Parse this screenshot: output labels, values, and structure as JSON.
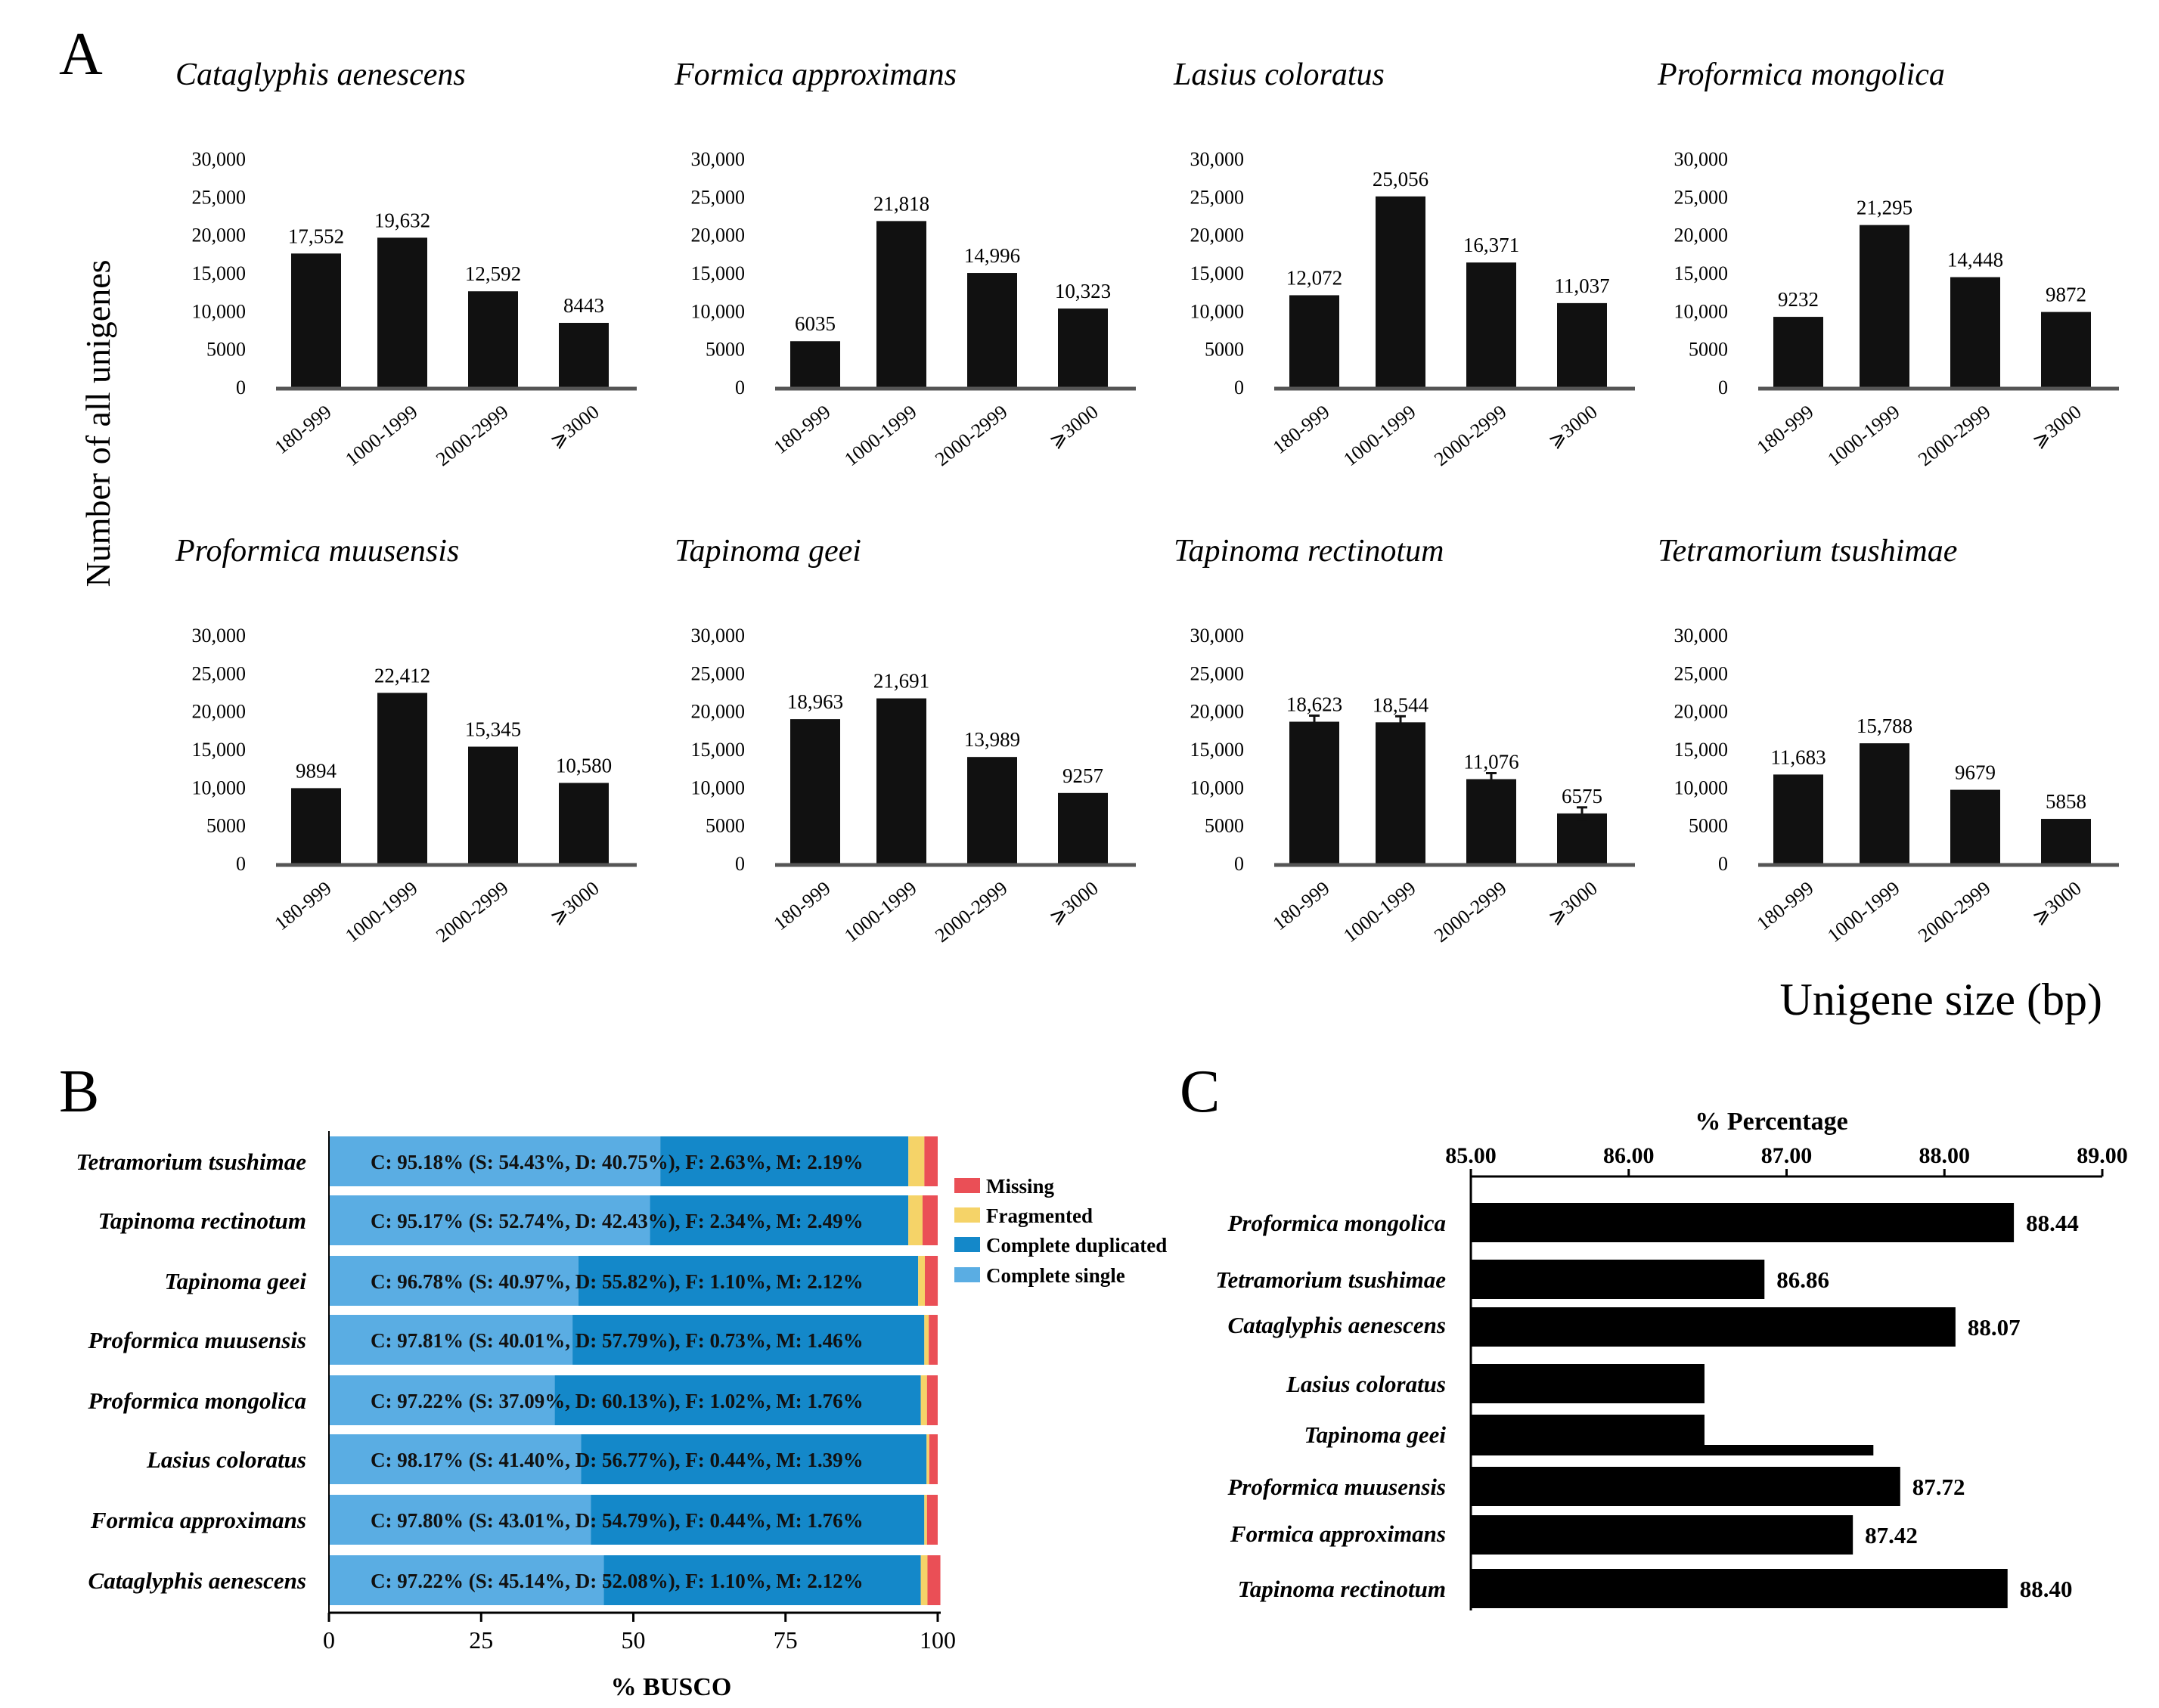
{
  "panel_labels": [
    "A",
    "B",
    "C"
  ],
  "panel_a": {
    "y_axis_label": "Number of all unigenes",
    "x_axis_label": "Unigene size (bp)",
    "y_ticks": [
      "30,000",
      "25,000",
      "20,000",
      "15,000",
      "10,000",
      "5000",
      "0"
    ]
  },
  "chart_data": [
    {
      "type": "bar",
      "panel": "A",
      "title": "Cataglyphis aenescens",
      "categories": [
        "180-999",
        "1000-1999",
        "2000-2999",
        "⩾3000"
      ],
      "values": [
        17552,
        19632,
        12592,
        8443
      ],
      "value_labels": [
        "17,552",
        "19,632",
        "12,592",
        "8443"
      ],
      "ylim": [
        0,
        30000
      ]
    },
    {
      "type": "bar",
      "panel": "A",
      "title": "Formica approximans",
      "categories": [
        "180-999",
        "1000-1999",
        "2000-2999",
        "⩾3000"
      ],
      "values": [
        6035,
        21818,
        14996,
        10323
      ],
      "value_labels": [
        "6035",
        "21,818",
        "14,996",
        "10,323"
      ],
      "ylim": [
        0,
        30000
      ]
    },
    {
      "type": "bar",
      "panel": "A",
      "title": "Lasius coloratus",
      "categories": [
        "180-999",
        "1000-1999",
        "2000-2999",
        "⩾3000"
      ],
      "values": [
        12072,
        25056,
        16371,
        11037
      ],
      "value_labels": [
        "12,072",
        "25,056",
        "16,371",
        "11,037"
      ],
      "ylim": [
        0,
        30000
      ]
    },
    {
      "type": "bar",
      "panel": "A",
      "title": "Proformica mongolica",
      "categories": [
        "180-999",
        "1000-1999",
        "2000-2999",
        "⩾3000"
      ],
      "values": [
        9232,
        21295,
        14448,
        9872
      ],
      "value_labels": [
        "9232",
        "21,295",
        "14,448",
        "9872"
      ],
      "ylim": [
        0,
        30000
      ]
    },
    {
      "type": "bar",
      "panel": "A",
      "title": "Proformica muusensis",
      "categories": [
        "180-999",
        "1000-1999",
        "2000-2999",
        "⩾3000"
      ],
      "values": [
        9894,
        22412,
        15345,
        10580
      ],
      "value_labels": [
        "9894",
        "22,412",
        "15,345",
        "10,580"
      ],
      "ylim": [
        0,
        30000
      ]
    },
    {
      "type": "bar",
      "panel": "A",
      "title": "Tapinoma geei",
      "categories": [
        "180-999",
        "1000-1999",
        "2000-2999",
        "⩾3000"
      ],
      "values": [
        18963,
        21691,
        13989,
        9257
      ],
      "value_labels": [
        "18,963",
        "21,691",
        "13,989",
        "9257"
      ],
      "ylim": [
        0,
        30000
      ]
    },
    {
      "type": "bar",
      "panel": "A",
      "title": "Tapinoma rectinotum",
      "categories": [
        "180-999",
        "1000-1999",
        "2000-2999",
        "⩾3000"
      ],
      "values": [
        18623,
        18544,
        11076,
        6575
      ],
      "value_labels": [
        "18,623",
        "18,544",
        "11,076",
        "6575"
      ],
      "ylim": [
        0,
        30000
      ]
    },
    {
      "type": "bar",
      "panel": "A",
      "title": "Tetramorium tsushimae",
      "categories": [
        "180-999",
        "1000-1999",
        "2000-2999",
        "⩾3000"
      ],
      "values": [
        11683,
        15788,
        9679,
        5858
      ],
      "value_labels": [
        "11,683",
        "15,788",
        "9679",
        "5858"
      ],
      "ylim": [
        0,
        30000
      ]
    },
    {
      "type": "stacked_bar_horizontal",
      "panel": "B",
      "xlabel": "% BUSCO",
      "x_ticks": [
        "0",
        "25",
        "50",
        "75",
        "100"
      ],
      "xlim": [
        0,
        100
      ],
      "legend": [
        "Missing",
        "Fragmented",
        "Complete duplicated",
        "Complete single"
      ],
      "colors": {
        "single": "#5aade3",
        "duplicated": "#1488c9",
        "fragmented": "#f5d368",
        "missing": "#ea4f56"
      },
      "categories": [
        "Tetramorium tsushimae",
        "Tapinoma rectinotum",
        "Tapinoma geei",
        "Proformica muusensis",
        "Proformica mongolica",
        "Lasius coloratus",
        "Formica approximans",
        "Cataglyphis aenescens"
      ],
      "series": [
        {
          "name": "Complete single",
          "values": [
            54.43,
            52.74,
            40.97,
            40.01,
            37.09,
            41.4,
            43.01,
            45.14
          ]
        },
        {
          "name": "Complete duplicated",
          "values": [
            40.75,
            42.43,
            55.82,
            57.79,
            60.13,
            56.77,
            54.79,
            52.08
          ]
        },
        {
          "name": "Fragmented",
          "values": [
            2.63,
            2.34,
            1.1,
            0.73,
            1.02,
            0.44,
            0.44,
            1.1
          ]
        },
        {
          "name": "Missing",
          "values": [
            2.19,
            2.49,
            2.12,
            1.46,
            1.76,
            1.39,
            1.76,
            2.12
          ]
        }
      ],
      "bar_labels": [
        "C: 95.18% (S: 54.43%, D: 40.75%), F: 2.63%, M: 2.19%",
        "C: 95.17% (S: 52.74%, D: 42.43%), F: 2.34%, M: 2.49%",
        "C: 96.78% (S: 40.97%, D: 55.82%), F: 1.10%, M: 2.12%",
        "C: 97.81% (S: 40.01%, D: 57.79%), F: 0.73%, M: 1.46%",
        "C: 97.22% (S: 37.09%, D: 60.13%), F: 1.02%, M: 1.76%",
        "C: 98.17% (S: 41.40%, D: 56.77%), F: 0.44%, M: 1.39%",
        "C: 97.80% (S: 43.01%, D: 54.79%), F: 0.44%, M: 1.76%",
        "C: 97.22% (S: 45.14%, D: 52.08%), F: 1.10%, M: 2.12%"
      ]
    },
    {
      "type": "bar_horizontal",
      "panel": "C",
      "title": "% Percentage",
      "x_ticks": [
        "85.00",
        "86.00",
        "87.00",
        "88.00",
        "89.00"
      ],
      "xlim": [
        85,
        89
      ],
      "categories": [
        "Proformica mongolica",
        "Tetramorium tsushimae",
        "Cataglyphis aenescens",
        "Lasius coloratus",
        "Tapinoma geei",
        "Proformica muusensis",
        "Formica approximans",
        "Tapinoma rectinotum"
      ],
      "values": [
        88.44,
        86.86,
        88.07,
        86.48,
        86.48,
        87.72,
        87.42,
        88.4
      ],
      "value_labels": [
        "88.44",
        "86.86",
        "88.07",
        "",
        "",
        "87.72",
        "87.42",
        "88.40"
      ],
      "extra_marks": [
        {
          "category": "Tapinoma geei",
          "value": 87.55
        }
      ]
    }
  ]
}
